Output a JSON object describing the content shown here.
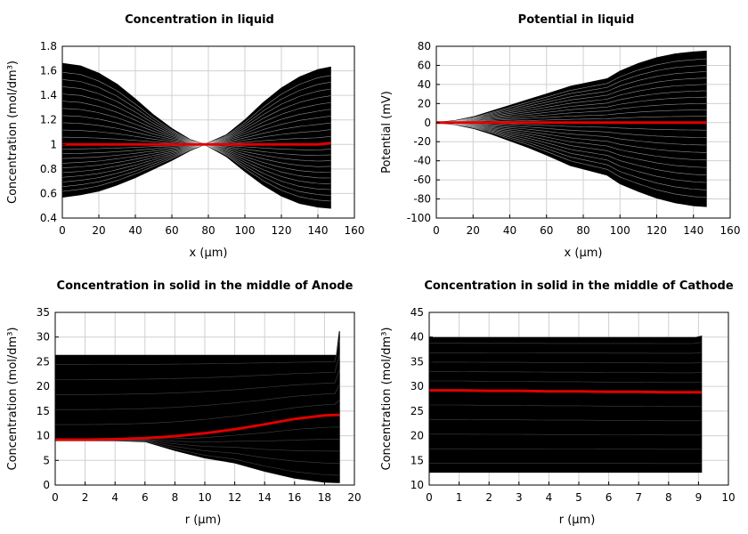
{
  "colors": {
    "envelope": "#000000",
    "mean": "#e00000",
    "grid": "#d0d0d0"
  },
  "chart_data": [
    {
      "type": "line",
      "title": "Concentration in liquid",
      "xlabel": "x (µm)",
      "ylabel": "Concentration (mol/dm³)",
      "xlim": [
        0,
        160
      ],
      "ylim": [
        0.4,
        1.8
      ],
      "xticks": [
        0,
        20,
        40,
        60,
        80,
        100,
        120,
        140,
        160
      ],
      "yticks": [
        0.4,
        0.6,
        0.8,
        1,
        1.2,
        1.4,
        1.6,
        1.8
      ],
      "xtick_labels": [
        "0",
        "20",
        "40",
        "60",
        "80",
        "100",
        "120",
        "140",
        "160"
      ],
      "ytick_labels": [
        "0.4",
        "0.6",
        "0.8",
        "1",
        "1.2",
        "1.4",
        "1.6",
        "1.8"
      ],
      "grid": true,
      "x": [
        0,
        10,
        20,
        30,
        40,
        50,
        60,
        70,
        78,
        90,
        100,
        110,
        120,
        130,
        140,
        147
      ],
      "envelope_upper": [
        1.66,
        1.64,
        1.58,
        1.49,
        1.37,
        1.24,
        1.13,
        1.04,
        1.0,
        1.08,
        1.2,
        1.34,
        1.46,
        1.55,
        1.61,
        1.63
      ],
      "envelope_lower": [
        0.57,
        0.59,
        0.62,
        0.67,
        0.73,
        0.8,
        0.87,
        0.95,
        1.0,
        0.9,
        0.78,
        0.67,
        0.58,
        0.52,
        0.49,
        0.48
      ],
      "series": [
        {
          "name": "",
          "values": [
            1.0,
            1.0,
            1.0,
            1.0,
            1.0,
            1.0,
            1.0,
            1.0,
            1.0,
            1.0,
            1.0,
            1.0,
            1.0,
            1.0,
            1.0,
            1.01
          ]
        }
      ]
    },
    {
      "type": "line",
      "title": "Potential in liquid",
      "xlabel": "x (µm)",
      "ylabel": "Potential (mV)",
      "xlim": [
        0,
        160
      ],
      "ylim": [
        -100,
        80
      ],
      "xticks": [
        0,
        20,
        40,
        60,
        80,
        100,
        120,
        140,
        160
      ],
      "yticks": [
        -100,
        -80,
        -60,
        -40,
        -20,
        0,
        20,
        40,
        60,
        80
      ],
      "xtick_labels": [
        "0",
        "20",
        "40",
        "60",
        "80",
        "100",
        "120",
        "140",
        "160"
      ],
      "ytick_labels": [
        "-100",
        "-80",
        "-60",
        "-40",
        "-20",
        "0",
        "20",
        "40",
        "60",
        "80"
      ],
      "grid": true,
      "x": [
        0,
        10,
        20,
        30,
        40,
        50,
        60,
        73,
        93,
        100,
        110,
        120,
        130,
        140,
        147
      ],
      "envelope_upper": [
        0,
        2,
        6,
        12,
        18,
        24,
        30,
        38,
        46,
        54,
        62,
        68,
        72,
        74,
        75
      ],
      "envelope_lower": [
        0,
        -2,
        -6,
        -12,
        -19,
        -26,
        -34,
        -45,
        -55,
        -64,
        -72,
        -79,
        -84,
        -87,
        -88
      ],
      "series": [
        {
          "name": "",
          "values": [
            0,
            0,
            0,
            0,
            0,
            0,
            0,
            0,
            0,
            0,
            0,
            0,
            0,
            0,
            0
          ]
        }
      ]
    },
    {
      "type": "line",
      "title": "Concentration in solid in the middle of Anode",
      "xlabel": "r (µm)",
      "ylabel": "Concentration (mol/dm³)",
      "xlim": [
        0,
        20
      ],
      "ylim": [
        0,
        35
      ],
      "xticks": [
        0,
        2,
        4,
        6,
        8,
        10,
        12,
        14,
        16,
        18,
        20
      ],
      "yticks": [
        0,
        5,
        10,
        15,
        20,
        25,
        30,
        35
      ],
      "xtick_labels": [
        "0",
        "2",
        "4",
        "6",
        "8",
        "10",
        "12",
        "14",
        "16",
        "18",
        "20"
      ],
      "ytick_labels": [
        "0",
        "5",
        "10",
        "15",
        "20",
        "25",
        "30",
        "35"
      ],
      "grid": true,
      "x": [
        0,
        2,
        4,
        6,
        8,
        10,
        12,
        14,
        16,
        18,
        18.8,
        19
      ],
      "envelope_upper": [
        26.3,
        26.3,
        26.3,
        26.3,
        26.3,
        26.3,
        26.3,
        26.3,
        26.3,
        26.3,
        26.3,
        31.2
      ],
      "envelope_lower": [
        9,
        9,
        9,
        8.8,
        7,
        5.5,
        4.5,
        2.8,
        1.4,
        0.6,
        0.5,
        0.5
      ],
      "series": [
        {
          "name": "",
          "values": [
            9.2,
            9.2,
            9.3,
            9.5,
            9.9,
            10.5,
            11.3,
            12.3,
            13.4,
            14.1,
            14.2,
            14.2
          ]
        }
      ]
    },
    {
      "type": "line",
      "title": "Concentration in solid in the middle of Cathode",
      "xlabel": "r (µm)",
      "ylabel": "Concentration (mol/dm³)",
      "xlim": [
        0,
        10
      ],
      "ylim": [
        10,
        45
      ],
      "xticks": [
        0,
        1,
        2,
        3,
        4,
        5,
        6,
        7,
        8,
        9,
        10
      ],
      "yticks": [
        10,
        15,
        20,
        25,
        30,
        35,
        40,
        45
      ],
      "xtick_labels": [
        "0",
        "1",
        "2",
        "3",
        "4",
        "5",
        "6",
        "7",
        "8",
        "9",
        "10"
      ],
      "ytick_labels": [
        "10",
        "15",
        "20",
        "25",
        "30",
        "35",
        "40",
        "45"
      ],
      "grid": true,
      "x": [
        0,
        1,
        2,
        3,
        4,
        5,
        6,
        7,
        8,
        8.9,
        9.1
      ],
      "envelope_upper": [
        39.9,
        39.9,
        39.9,
        39.9,
        39.9,
        39.9,
        39.9,
        39.9,
        39.9,
        39.9,
        40.2
      ],
      "envelope_lower": [
        12.6,
        12.6,
        12.6,
        12.6,
        12.6,
        12.6,
        12.6,
        12.6,
        12.6,
        12.6,
        12.6
      ],
      "series": [
        {
          "name": "",
          "values": [
            29.2,
            29.2,
            29.1,
            29.1,
            29.0,
            29.0,
            28.9,
            28.9,
            28.8,
            28.8,
            28.8
          ]
        }
      ]
    }
  ]
}
